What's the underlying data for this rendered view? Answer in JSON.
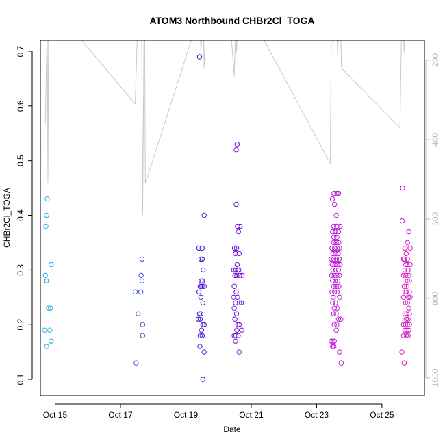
{
  "chart_data": {
    "type": "scatter",
    "title": "ATOM3 Northbound CHBr2Cl_TOGA",
    "xlabel": "Date",
    "ylabel": "CHBr2Cl_TOGA",
    "xlim": [
      14.55,
      26.3
    ],
    "ylim": [
      0.07,
      0.72
    ],
    "x_ticks": [
      {
        "value": 15,
        "label": "Oct 15"
      },
      {
        "value": 17,
        "label": "Oct 17"
      },
      {
        "value": 19,
        "label": "Oct 19"
      },
      {
        "value": 21,
        "label": "Oct 21"
      },
      {
        "value": 23,
        "label": "Oct 23"
      },
      {
        "value": 25,
        "label": "Oct 25"
      }
    ],
    "y_ticks": [
      0.1,
      0.2,
      0.3,
      0.4,
      0.5,
      0.6,
      0.7
    ],
    "y2_label": "",
    "y2lim": [
      1045,
      150
    ],
    "y2_ticks": [
      200,
      400,
      600,
      800,
      1000
    ],
    "grid": false,
    "color_scale": [
      "#1fb5e8",
      "#3a6fe0",
      "#3a10d8",
      "#8a10d8",
      "#b818d0",
      "#d818c4"
    ],
    "points": [
      [
        14.76,
        0.43
      ],
      [
        14.74,
        0.4
      ],
      [
        14.72,
        0.38
      ],
      [
        14.7,
        0.29
      ],
      [
        14.73,
        0.28
      ],
      [
        14.75,
        0.28
      ],
      [
        14.88,
        0.31
      ],
      [
        14.8,
        0.23
      ],
      [
        14.86,
        0.23
      ],
      [
        14.68,
        0.19
      ],
      [
        14.84,
        0.19
      ],
      [
        14.74,
        0.16
      ],
      [
        14.88,
        0.17
      ],
      [
        17.66,
        0.32
      ],
      [
        17.63,
        0.29
      ],
      [
        17.66,
        0.28
      ],
      [
        17.45,
        0.26
      ],
      [
        17.62,
        0.26
      ],
      [
        17.54,
        0.22
      ],
      [
        17.68,
        0.2
      ],
      [
        17.68,
        0.18
      ],
      [
        17.48,
        0.13
      ],
      [
        19.42,
        0.69
      ],
      [
        19.56,
        0.4
      ],
      [
        19.4,
        0.34
      ],
      [
        19.5,
        0.34
      ],
      [
        19.46,
        0.32
      ],
      [
        19.5,
        0.32
      ],
      [
        19.53,
        0.3
      ],
      [
        19.47,
        0.28
      ],
      [
        19.51,
        0.28
      ],
      [
        19.44,
        0.27
      ],
      [
        19.49,
        0.27
      ],
      [
        19.56,
        0.27
      ],
      [
        19.4,
        0.26
      ],
      [
        19.46,
        0.25
      ],
      [
        19.52,
        0.24
      ],
      [
        19.42,
        0.22
      ],
      [
        19.46,
        0.22
      ],
      [
        19.38,
        0.21
      ],
      [
        19.44,
        0.21
      ],
      [
        19.52,
        0.2
      ],
      [
        19.56,
        0.2
      ],
      [
        19.48,
        0.19
      ],
      [
        19.44,
        0.18
      ],
      [
        19.5,
        0.18
      ],
      [
        19.43,
        0.16
      ],
      [
        19.56,
        0.15
      ],
      [
        19.52,
        0.1
      ],
      [
        20.57,
        0.53
      ],
      [
        20.54,
        0.52
      ],
      [
        20.54,
        0.42
      ],
      [
        20.58,
        0.38
      ],
      [
        20.66,
        0.38
      ],
      [
        20.61,
        0.37
      ],
      [
        20.49,
        0.34
      ],
      [
        20.55,
        0.34
      ],
      [
        20.52,
        0.33
      ],
      [
        20.63,
        0.33
      ],
      [
        20.57,
        0.31
      ],
      [
        20.46,
        0.3
      ],
      [
        20.53,
        0.3
      ],
      [
        20.59,
        0.3
      ],
      [
        20.62,
        0.3
      ],
      [
        20.5,
        0.29
      ],
      [
        20.56,
        0.29
      ],
      [
        20.64,
        0.29
      ],
      [
        20.72,
        0.29
      ],
      [
        20.48,
        0.27
      ],
      [
        20.54,
        0.26
      ],
      [
        20.58,
        0.25
      ],
      [
        20.46,
        0.25
      ],
      [
        20.52,
        0.24
      ],
      [
        20.64,
        0.24
      ],
      [
        20.7,
        0.24
      ],
      [
        20.48,
        0.23
      ],
      [
        20.55,
        0.22
      ],
      [
        20.5,
        0.21
      ],
      [
        20.59,
        0.2
      ],
      [
        20.63,
        0.2
      ],
      [
        20.56,
        0.19
      ],
      [
        20.71,
        0.19
      ],
      [
        20.48,
        0.18
      ],
      [
        20.53,
        0.18
      ],
      [
        20.6,
        0.18
      ],
      [
        20.52,
        0.17
      ],
      [
        20.63,
        0.15
      ],
      [
        23.53,
        0.44
      ],
      [
        23.62,
        0.44
      ],
      [
        23.67,
        0.44
      ],
      [
        23.48,
        0.43
      ],
      [
        23.55,
        0.42
      ],
      [
        23.6,
        0.4
      ],
      [
        23.52,
        0.38
      ],
      [
        23.62,
        0.38
      ],
      [
        23.72,
        0.38
      ],
      [
        23.49,
        0.37
      ],
      [
        23.58,
        0.37
      ],
      [
        23.67,
        0.37
      ],
      [
        23.53,
        0.36
      ],
      [
        23.62,
        0.36
      ],
      [
        23.52,
        0.35
      ],
      [
        23.6,
        0.35
      ],
      [
        23.68,
        0.35
      ],
      [
        23.47,
        0.34
      ],
      [
        23.55,
        0.34
      ],
      [
        23.63,
        0.34
      ],
      [
        23.7,
        0.34
      ],
      [
        23.5,
        0.33
      ],
      [
        23.58,
        0.33
      ],
      [
        23.66,
        0.33
      ],
      [
        23.45,
        0.32
      ],
      [
        23.53,
        0.32
      ],
      [
        23.61,
        0.32
      ],
      [
        23.69,
        0.32
      ],
      [
        23.48,
        0.31
      ],
      [
        23.56,
        0.31
      ],
      [
        23.64,
        0.31
      ],
      [
        23.72,
        0.31
      ],
      [
        23.5,
        0.3
      ],
      [
        23.59,
        0.3
      ],
      [
        23.67,
        0.3
      ],
      [
        23.46,
        0.29
      ],
      [
        23.54,
        0.29
      ],
      [
        23.62,
        0.29
      ],
      [
        23.7,
        0.29
      ],
      [
        23.49,
        0.28
      ],
      [
        23.57,
        0.28
      ],
      [
        23.65,
        0.28
      ],
      [
        23.52,
        0.27
      ],
      [
        23.6,
        0.27
      ],
      [
        23.68,
        0.27
      ],
      [
        23.47,
        0.26
      ],
      [
        23.55,
        0.26
      ],
      [
        23.63,
        0.26
      ],
      [
        23.51,
        0.25
      ],
      [
        23.7,
        0.25
      ],
      [
        23.49,
        0.24
      ],
      [
        23.58,
        0.24
      ],
      [
        23.54,
        0.23
      ],
      [
        23.63,
        0.23
      ],
      [
        23.52,
        0.22
      ],
      [
        23.6,
        0.22
      ],
      [
        23.67,
        0.21
      ],
      [
        23.74,
        0.21
      ],
      [
        23.54,
        0.2
      ],
      [
        23.62,
        0.2
      ],
      [
        23.6,
        0.19
      ],
      [
        23.45,
        0.17
      ],
      [
        23.5,
        0.17
      ],
      [
        23.54,
        0.17
      ],
      [
        23.49,
        0.16
      ],
      [
        23.53,
        0.16
      ],
      [
        23.7,
        0.15
      ],
      [
        23.75,
        0.13
      ],
      [
        25.63,
        0.45
      ],
      [
        25.62,
        0.39
      ],
      [
        25.82,
        0.37
      ],
      [
        25.78,
        0.35
      ],
      [
        25.7,
        0.34
      ],
      [
        25.86,
        0.34
      ],
      [
        25.74,
        0.33
      ],
      [
        25.66,
        0.32
      ],
      [
        25.69,
        0.32
      ],
      [
        25.78,
        0.32
      ],
      [
        25.73,
        0.31
      ],
      [
        25.77,
        0.31
      ],
      [
        25.86,
        0.31
      ],
      [
        25.7,
        0.3
      ],
      [
        25.8,
        0.3
      ],
      [
        25.66,
        0.29
      ],
      [
        25.73,
        0.29
      ],
      [
        25.82,
        0.29
      ],
      [
        25.78,
        0.28
      ],
      [
        25.84,
        0.28
      ],
      [
        25.68,
        0.27
      ],
      [
        25.76,
        0.27
      ],
      [
        25.7,
        0.26
      ],
      [
        25.74,
        0.26
      ],
      [
        25.84,
        0.26
      ],
      [
        25.66,
        0.25
      ],
      [
        25.8,
        0.25
      ],
      [
        25.86,
        0.25
      ],
      [
        25.72,
        0.24
      ],
      [
        25.78,
        0.24
      ],
      [
        25.82,
        0.23
      ],
      [
        25.7,
        0.22
      ],
      [
        25.76,
        0.22
      ],
      [
        25.84,
        0.22
      ],
      [
        25.74,
        0.21
      ],
      [
        25.8,
        0.21
      ],
      [
        25.66,
        0.2
      ],
      [
        25.72,
        0.2
      ],
      [
        25.78,
        0.2
      ],
      [
        25.84,
        0.2
      ],
      [
        25.7,
        0.19
      ],
      [
        25.76,
        0.19
      ],
      [
        25.82,
        0.19
      ],
      [
        25.66,
        0.18
      ],
      [
        25.74,
        0.18
      ],
      [
        25.8,
        0.18
      ],
      [
        25.61,
        0.15
      ],
      [
        25.68,
        0.13
      ]
    ],
    "pressure_trace": [
      [
        14.7,
        360
      ],
      [
        14.73,
        230
      ],
      [
        14.76,
        120
      ],
      [
        14.78,
        510
      ],
      [
        14.8,
        120
      ],
      [
        14.84,
        140
      ],
      [
        14.88,
        140
      ],
      [
        14.91,
        110
      ],
      [
        14.93,
        100
      ],
      [
        15.0,
        90
      ],
      [
        15.3,
        100
      ],
      [
        17.45,
        310
      ],
      [
        17.52,
        120
      ],
      [
        17.62,
        100
      ],
      [
        17.65,
        120
      ],
      [
        17.68,
        590
      ],
      [
        17.72,
        120
      ],
      [
        17.74,
        120
      ],
      [
        17.76,
        510
      ],
      [
        19.36,
        100
      ],
      [
        19.4,
        120
      ],
      [
        19.43,
        80
      ],
      [
        19.46,
        180
      ],
      [
        19.5,
        120
      ],
      [
        19.53,
        80
      ],
      [
        19.56,
        220
      ],
      [
        19.6,
        120
      ],
      [
        20.4,
        150
      ],
      [
        20.48,
        240
      ],
      [
        20.52,
        120
      ],
      [
        20.55,
        180
      ],
      [
        20.58,
        120
      ],
      [
        20.62,
        120
      ],
      [
        20.66,
        120
      ],
      [
        21.2,
        120
      ],
      [
        23.42,
        460
      ],
      [
        23.45,
        120
      ],
      [
        23.48,
        80
      ],
      [
        23.51,
        160
      ],
      [
        23.54,
        100
      ],
      [
        23.57,
        120
      ],
      [
        23.6,
        80
      ],
      [
        23.64,
        180
      ],
      [
        23.67,
        140
      ],
      [
        23.7,
        120
      ],
      [
        23.73,
        80
      ],
      [
        23.76,
        220
      ],
      [
        25.55,
        370
      ],
      [
        25.6,
        120
      ],
      [
        25.64,
        90
      ],
      [
        25.68,
        180
      ],
      [
        25.72,
        120
      ],
      [
        25.76,
        100
      ],
      [
        25.8,
        120
      ],
      [
        25.84,
        140
      ],
      [
        25.88,
        100
      ],
      [
        26.0,
        90
      ]
    ]
  }
}
